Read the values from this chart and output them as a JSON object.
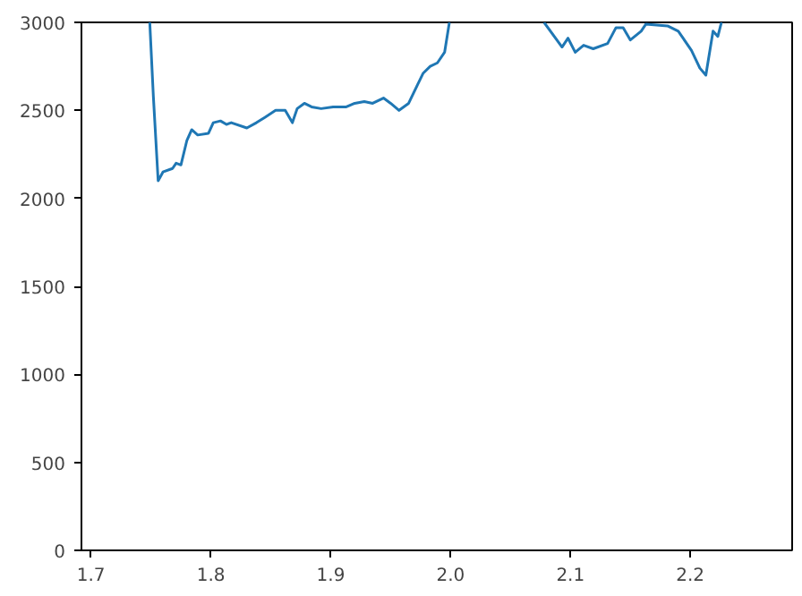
{
  "chart_data": {
    "type": "line",
    "xlim": [
      1.692,
      2.285
    ],
    "ylim": [
      0,
      3000
    ],
    "xticks": [
      {
        "value": 1.7,
        "label": "1.7"
      },
      {
        "value": 1.8,
        "label": "1.8"
      },
      {
        "value": 1.9,
        "label": "1.9"
      },
      {
        "value": 2.0,
        "label": "2.0"
      },
      {
        "value": 2.1,
        "label": "2.1"
      },
      {
        "value": 2.2,
        "label": "2.2"
      }
    ],
    "yticks": [
      0,
      500,
      1000,
      1500,
      2000,
      2500,
      3000
    ],
    "grid": false,
    "series": [
      {
        "color": "#1f77b4",
        "x": [
          1.749,
          1.752,
          1.756,
          1.76,
          1.768,
          1.771,
          1.775,
          1.78,
          1.784,
          1.789,
          1.798,
          1.802,
          1.808,
          1.813,
          1.817,
          1.83,
          1.838,
          1.845,
          1.854,
          1.862,
          1.868,
          1.872,
          1.878,
          1.884,
          1.892,
          1.902,
          1.913,
          1.92,
          1.928,
          1.935,
          1.944,
          1.95,
          1.957,
          1.965,
          1.972,
          1.977,
          1.983,
          1.989,
          1.995,
          1.999,
          2.04,
          2.078,
          2.093,
          2.098,
          2.104,
          2.111,
          2.119,
          2.131,
          2.138,
          2.144,
          2.15,
          2.159,
          2.163,
          2.181,
          2.19,
          2.201,
          2.208,
          2.213,
          2.219,
          2.223,
          2.226
        ],
        "values": [
          3000,
          2580,
          2100,
          2150,
          2170,
          2200,
          2190,
          2330,
          2390,
          2360,
          2370,
          2430,
          2440,
          2420,
          2430,
          2400,
          2430,
          2460,
          2500,
          2500,
          2430,
          2510,
          2540,
          2520,
          2510,
          2520,
          2520,
          2540,
          2550,
          2540,
          2570,
          2540,
          2500,
          2540,
          2640,
          2710,
          2750,
          2770,
          2830,
          3000,
          null,
          3000,
          2860,
          2910,
          2830,
          2870,
          2850,
          2880,
          2970,
          2970,
          2900,
          2950,
          2990,
          2980,
          2950,
          2840,
          2740,
          2700,
          2950,
          2920,
          3000
        ]
      }
    ]
  }
}
